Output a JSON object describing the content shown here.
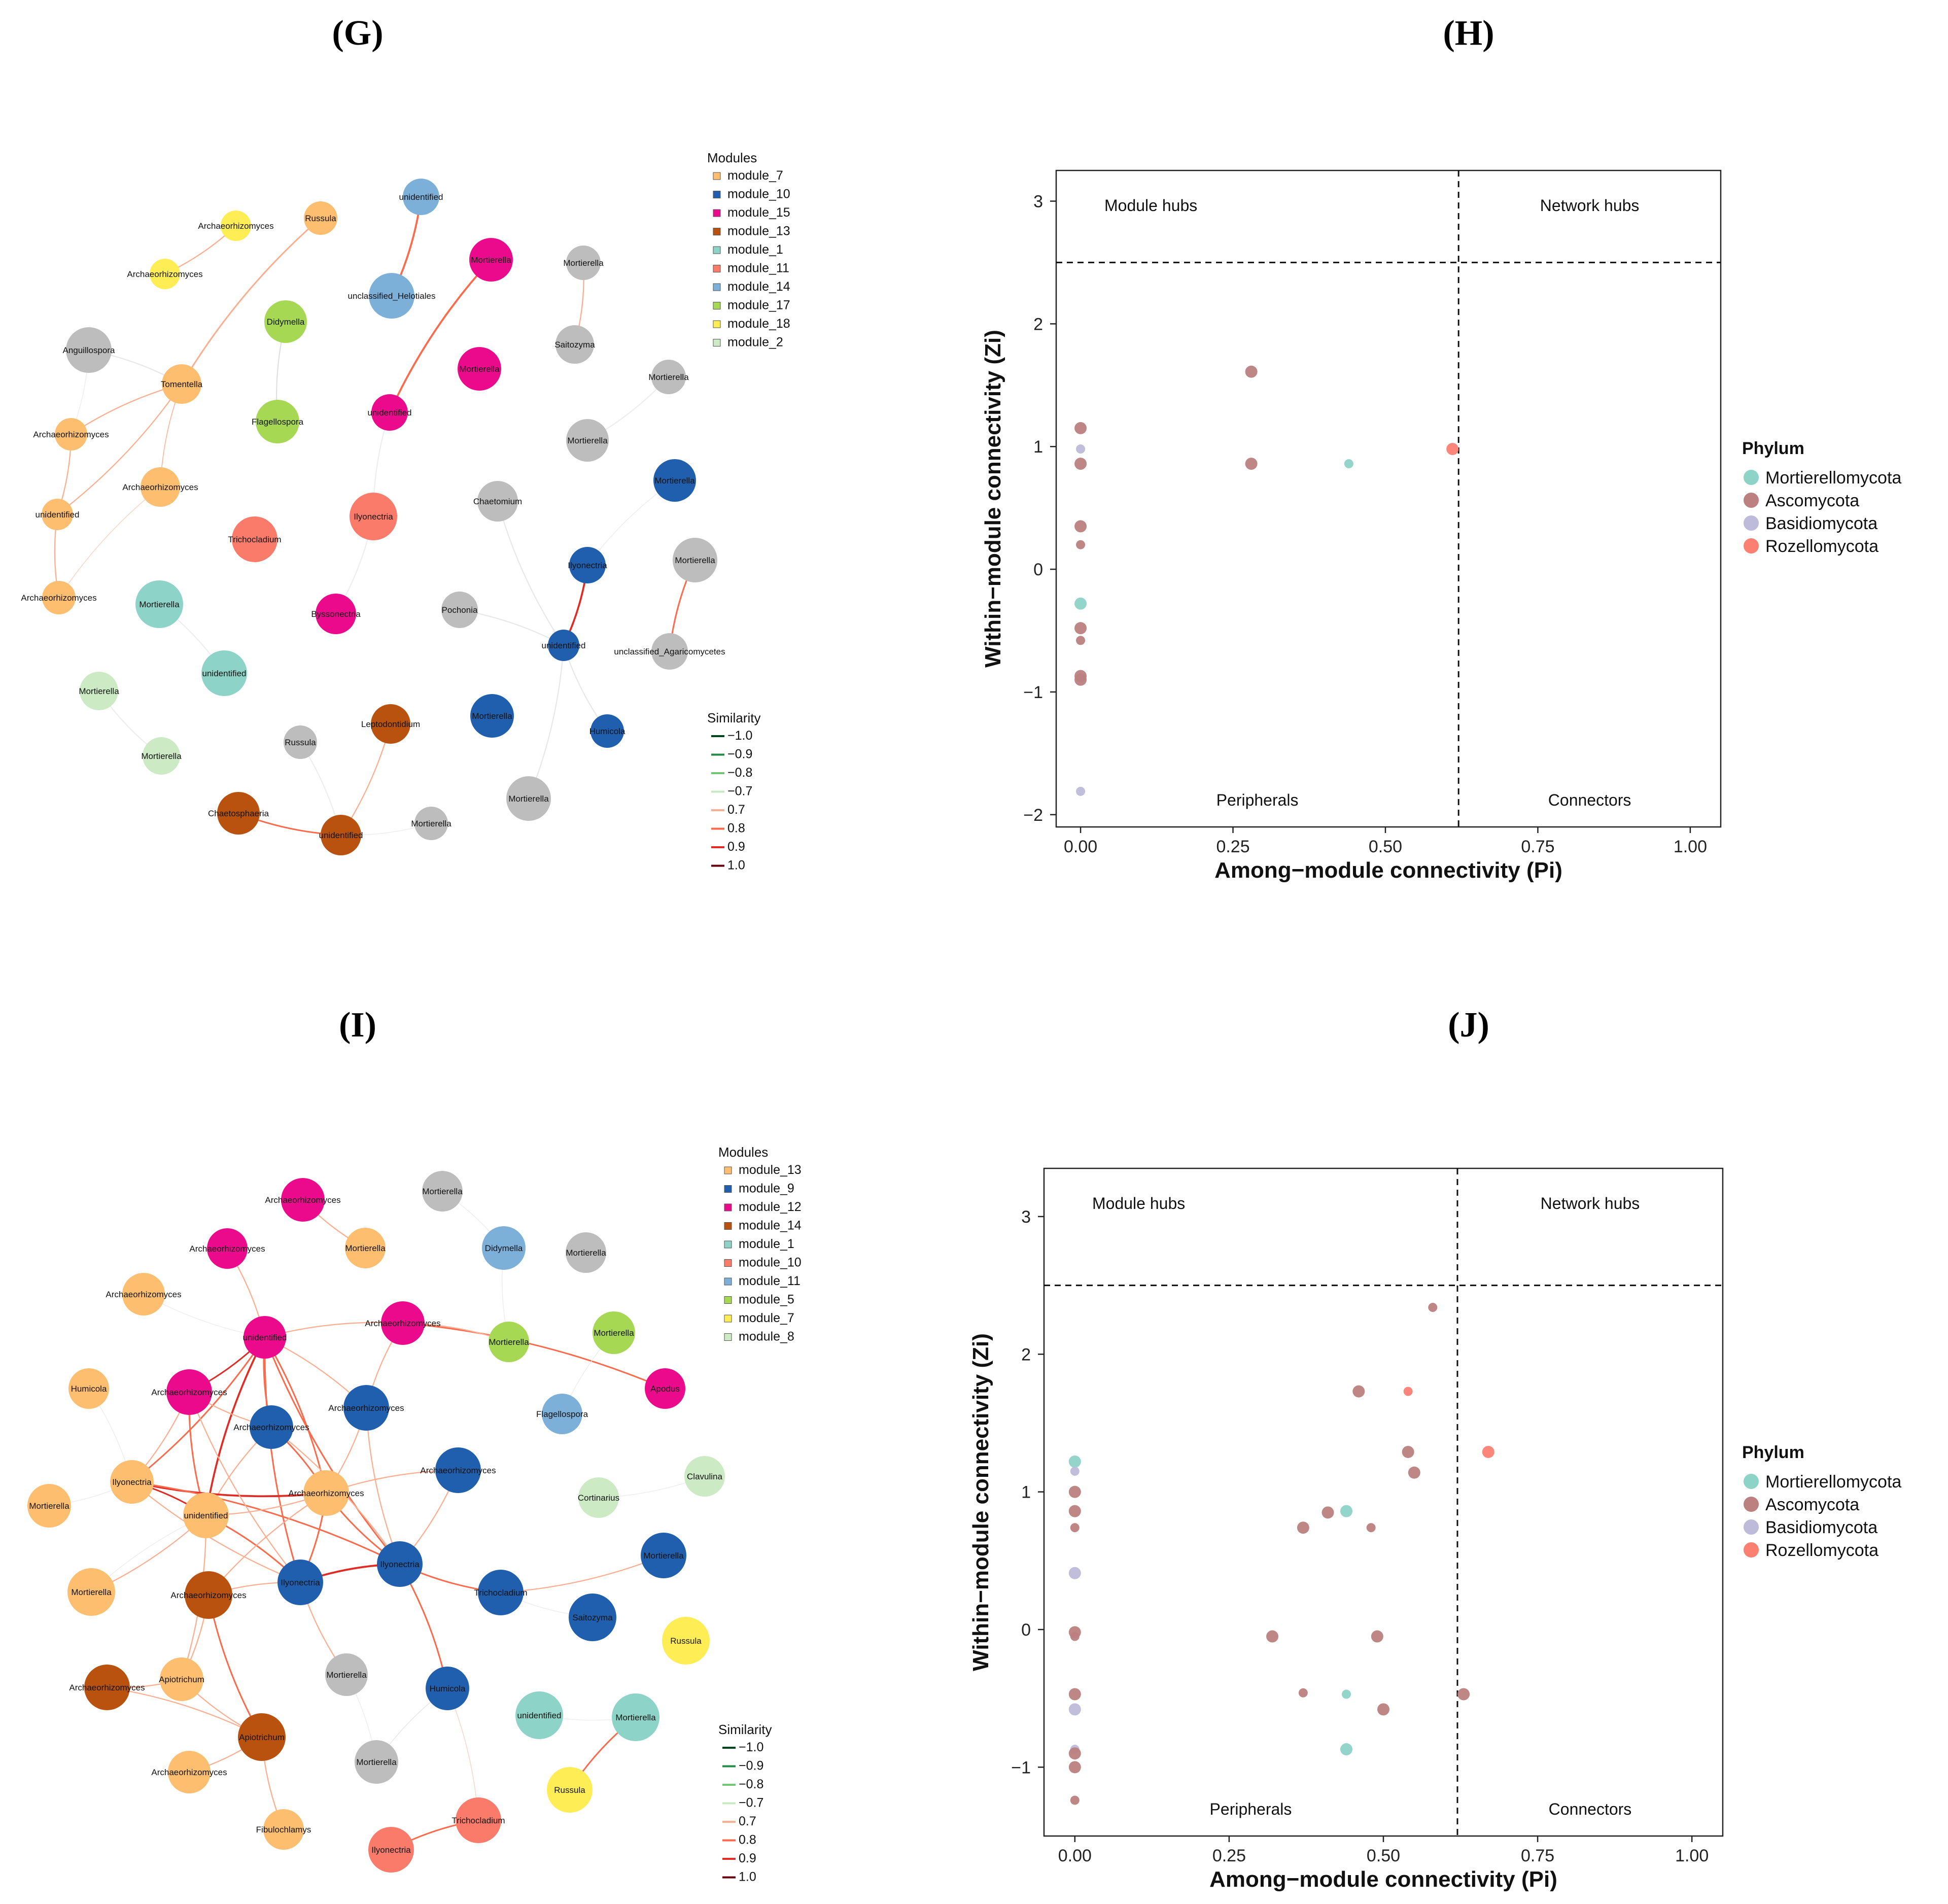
{
  "chart_data": [
    {
      "panel": "(G)",
      "type": "network",
      "modules_title": "Modules",
      "modules": [
        {
          "name": "module_7",
          "color": "#FDBF6F"
        },
        {
          "name": "module_10",
          "color": "#1F5FAD"
        },
        {
          "name": "module_15",
          "color": "#EC0A8C"
        },
        {
          "name": "module_13",
          "color": "#B8520E"
        },
        {
          "name": "module_1",
          "color": "#8DD3C7"
        },
        {
          "name": "module_11",
          "color": "#FB7B6B"
        },
        {
          "name": "module_14",
          "color": "#7DB0D9"
        },
        {
          "name": "module_17",
          "color": "#A6D854"
        },
        {
          "name": "module_18",
          "color": "#FFED55"
        },
        {
          "name": "module_2",
          "color": "#CCEBC5"
        }
      ],
      "similarity_title": "Similarity",
      "similarity": [
        {
          "label": "−1.0",
          "color": "#00441B"
        },
        {
          "label": "−0.9",
          "color": "#238B45"
        },
        {
          "label": "−0.8",
          "color": "#74C476"
        },
        {
          "label": "−0.7",
          "color": "#C7E9C0"
        },
        {
          "label": "0.7",
          "color": "#FCAE91"
        },
        {
          "label": "0.8",
          "color": "#FB6A4A"
        },
        {
          "label": "0.9",
          "color": "#DE2D26"
        },
        {
          "label": "1.0",
          "color": "#67000D"
        }
      ],
      "nodes": [
        {
          "id": "g1",
          "label": "Archaeorhizomyces",
          "group": "module_18"
        },
        {
          "id": "g2",
          "label": "Archaeorhizomyces",
          "group": "module_18"
        },
        {
          "id": "g3",
          "label": "Russula",
          "group": "module_7"
        },
        {
          "id": "g4",
          "label": "unidentified",
          "group": "module_14"
        },
        {
          "id": "g5",
          "label": "unclassified_Helotiales",
          "group": "module_14"
        },
        {
          "id": "g6",
          "label": "Mortierella",
          "group": "module_15"
        },
        {
          "id": "g7",
          "label": "Mortierella",
          "group": "none"
        },
        {
          "id": "g8",
          "label": "Anguillospora",
          "group": "none"
        },
        {
          "id": "g9",
          "label": "Didymella",
          "group": "module_17"
        },
        {
          "id": "g10",
          "label": "Saitozyma",
          "group": "none"
        },
        {
          "id": "g11",
          "label": "Mortierella",
          "group": "module_15"
        },
        {
          "id": "g12",
          "label": "Mortierella",
          "group": "none"
        },
        {
          "id": "g13",
          "label": "Tomentella",
          "group": "module_7"
        },
        {
          "id": "g14",
          "label": "Archaeorhizomyces",
          "group": "module_7"
        },
        {
          "id": "g15",
          "label": "Flagellospora",
          "group": "module_17"
        },
        {
          "id": "g16",
          "label": "unidentified",
          "group": "module_15"
        },
        {
          "id": "g17",
          "label": "Mortierella",
          "group": "none"
        },
        {
          "id": "g18",
          "label": "Archaeorhizomyces",
          "group": "module_7"
        },
        {
          "id": "g19",
          "label": "Mortierella",
          "group": "module_10"
        },
        {
          "id": "g20",
          "label": "unidentified",
          "group": "module_7"
        },
        {
          "id": "g21",
          "label": "Ilyonectria",
          "group": "module_11"
        },
        {
          "id": "g22",
          "label": "Trichocladium",
          "group": "module_11"
        },
        {
          "id": "g23",
          "label": "Chaetomium",
          "group": "none"
        },
        {
          "id": "g24",
          "label": "Ilyonectria",
          "group": "module_10"
        },
        {
          "id": "g25",
          "label": "Mortierella",
          "group": "none"
        },
        {
          "id": "g26",
          "label": "Archaeorhizomyces",
          "group": "module_7"
        },
        {
          "id": "g27",
          "label": "Mortierella",
          "group": "module_1"
        },
        {
          "id": "g28",
          "label": "Byssonectria",
          "group": "module_15"
        },
        {
          "id": "g29",
          "label": "Pochonia",
          "group": "none"
        },
        {
          "id": "g30",
          "label": "unidentified",
          "group": "module_10"
        },
        {
          "id": "g31",
          "label": "unclassified_Agaricomycetes",
          "group": "none"
        },
        {
          "id": "g32",
          "label": "unidentified",
          "group": "module_1"
        },
        {
          "id": "g33",
          "label": "Mortierella",
          "group": "module_2"
        },
        {
          "id": "g34",
          "label": "Leptodontidium",
          "group": "module_13"
        },
        {
          "id": "g35",
          "label": "Mortierella",
          "group": "module_10"
        },
        {
          "id": "g36",
          "label": "Humicola",
          "group": "module_10"
        },
        {
          "id": "g37",
          "label": "Russula",
          "group": "none"
        },
        {
          "id": "g38",
          "label": "Mortierella",
          "group": "module_2"
        },
        {
          "id": "g39",
          "label": "Mortierella",
          "group": "none"
        },
        {
          "id": "g40",
          "label": "Chaetosphaeria",
          "group": "module_13"
        },
        {
          "id": "g41",
          "label": "unidentified",
          "group": "module_13"
        },
        {
          "id": "g42",
          "label": "Mortierella",
          "group": "none"
        }
      ]
    },
    {
      "panel": "(H)",
      "type": "scatter",
      "xlabel": "Among−module connectivity (Pi)",
      "ylabel": "Within−module connectivity (Zi)",
      "xlim": [
        -0.04,
        1.05
      ],
      "ylim": [
        -2.1,
        3.25
      ],
      "xticks": [
        "0.00",
        "0.25",
        "0.50",
        "0.75",
        "1.00"
      ],
      "yticks": [
        "−2",
        "−1",
        "0",
        "1",
        "2",
        "3"
      ],
      "thresholds": {
        "x": 0.62,
        "y": 2.5
      },
      "quadrants": {
        "module_hubs": "Module hubs",
        "network_hubs": "Network hubs",
        "peripherals": "Peripherals",
        "connectors": "Connectors"
      },
      "legend_title": "Phylum",
      "legend": [
        {
          "name": "Mortierellomycota",
          "color": "#8DD3C7"
        },
        {
          "name": "Ascomycota",
          "color": "#BC8080"
        },
        {
          "name": "Basidiomycota",
          "color": "#BEBADA"
        },
        {
          "name": "Rozellomycota",
          "color": "#FB8072"
        }
      ],
      "points": [
        {
          "x": 0.0,
          "y": 1.15,
          "phylum": "Ascomycota"
        },
        {
          "x": 0.0,
          "y": 0.98,
          "phylum": "Basidiomycota"
        },
        {
          "x": 0.0,
          "y": 0.86,
          "phylum": "Ascomycota"
        },
        {
          "x": 0.0,
          "y": 0.35,
          "phylum": "Ascomycota"
        },
        {
          "x": 0.0,
          "y": 0.2,
          "phylum": "Ascomycota"
        },
        {
          "x": 0.0,
          "y": -0.28,
          "phylum": "Mortierellomycota"
        },
        {
          "x": 0.0,
          "y": -0.48,
          "phylum": "Ascomycota"
        },
        {
          "x": 0.0,
          "y": -0.58,
          "phylum": "Ascomycota"
        },
        {
          "x": 0.0,
          "y": -0.87,
          "phylum": "Ascomycota"
        },
        {
          "x": 0.0,
          "y": -0.9,
          "phylum": "Ascomycota"
        },
        {
          "x": 0.0,
          "y": -1.81,
          "phylum": "Basidiomycota"
        },
        {
          "x": 0.28,
          "y": 1.61,
          "phylum": "Ascomycota"
        },
        {
          "x": 0.28,
          "y": 0.86,
          "phylum": "Ascomycota"
        },
        {
          "x": 0.44,
          "y": 0.86,
          "phylum": "Mortierellomycota"
        },
        {
          "x": 0.61,
          "y": 0.98,
          "phylum": "Rozellomycota"
        }
      ]
    },
    {
      "panel": "(I)",
      "type": "network",
      "modules_title": "Modules",
      "modules": [
        {
          "name": "module_13",
          "color": "#FDBF6F"
        },
        {
          "name": "module_9",
          "color": "#1F5FAD"
        },
        {
          "name": "module_12",
          "color": "#EC0A8C"
        },
        {
          "name": "module_14",
          "color": "#B8520E"
        },
        {
          "name": "module_1",
          "color": "#8DD3C7"
        },
        {
          "name": "module_10",
          "color": "#FB7B6B"
        },
        {
          "name": "module_11",
          "color": "#7DB0D9"
        },
        {
          "name": "module_5",
          "color": "#A6D854"
        },
        {
          "name": "module_7",
          "color": "#FFED55"
        },
        {
          "name": "module_8",
          "color": "#CCEBC5"
        }
      ],
      "similarity_title": "Similarity",
      "similarity": [
        {
          "label": "−1.0",
          "color": "#00441B"
        },
        {
          "label": "−0.9",
          "color": "#238B45"
        },
        {
          "label": "−0.8",
          "color": "#74C476"
        },
        {
          "label": "−0.7",
          "color": "#C7E9C0"
        },
        {
          "label": "0.7",
          "color": "#FCAE91"
        },
        {
          "label": "0.8",
          "color": "#FB6A4A"
        },
        {
          "label": "0.9",
          "color": "#DE2D26"
        },
        {
          "label": "1.0",
          "color": "#67000D"
        }
      ],
      "nodes": [
        {
          "id": "i1",
          "label": "Archaeorhizomyces",
          "group": "module_12"
        },
        {
          "id": "i2",
          "label": "Mortierella",
          "group": "none"
        },
        {
          "id": "i3",
          "label": "Archaeorhizomyces",
          "group": "module_12"
        },
        {
          "id": "i4",
          "label": "Mortierella",
          "group": "module_13"
        },
        {
          "id": "i5",
          "label": "Didymella",
          "group": "module_11"
        },
        {
          "id": "i6",
          "label": "Mortierella",
          "group": "none"
        },
        {
          "id": "i7",
          "label": "Archaeorhizomyces",
          "group": "module_13"
        },
        {
          "id": "i8",
          "label": "unidentified",
          "group": "module_12"
        },
        {
          "id": "i9",
          "label": "Archaeorhizomyces",
          "group": "module_12"
        },
        {
          "id": "i10",
          "label": "Mortierella",
          "group": "module_5"
        },
        {
          "id": "i11",
          "label": "Mortierella",
          "group": "module_5"
        },
        {
          "id": "i12",
          "label": "Humicola",
          "group": "module_13"
        },
        {
          "id": "i13",
          "label": "Archaeorhizomyces",
          "group": "module_12"
        },
        {
          "id": "i14",
          "label": "Archaeorhizomyces",
          "group": "module_9"
        },
        {
          "id": "i15",
          "label": "Apodus",
          "group": "module_12"
        },
        {
          "id": "i16",
          "label": "Archaeorhizomyces",
          "group": "module_9"
        },
        {
          "id": "i17",
          "label": "Flagellospora",
          "group": "module_11"
        },
        {
          "id": "i18",
          "label": "Ilyonectria",
          "group": "module_13"
        },
        {
          "id": "i19",
          "label": "Archaeorhizomyces",
          "group": "module_9"
        },
        {
          "id": "i20",
          "label": "Clavulina",
          "group": "module_8"
        },
        {
          "id": "i21",
          "label": "Mortierella",
          "group": "module_13"
        },
        {
          "id": "i22",
          "label": "unidentified",
          "group": "module_13"
        },
        {
          "id": "i23",
          "label": "Archaeorhizomyces",
          "group": "module_13"
        },
        {
          "id": "i24",
          "label": "Cortinarius",
          "group": "module_8"
        },
        {
          "id": "i25",
          "label": "Ilyonectria",
          "group": "module_9"
        },
        {
          "id": "i26",
          "label": "Ilyonectria",
          "group": "module_9"
        },
        {
          "id": "i27",
          "label": "Mortierella",
          "group": "module_9"
        },
        {
          "id": "i28",
          "label": "Mortierella",
          "group": "module_13"
        },
        {
          "id": "i29",
          "label": "Archaeorhizomyces",
          "group": "module_14"
        },
        {
          "id": "i30",
          "label": "Trichocladium",
          "group": "module_9"
        },
        {
          "id": "i31",
          "label": "Saitozyma",
          "group": "module_9"
        },
        {
          "id": "i32",
          "label": "Russula",
          "group": "module_7"
        },
        {
          "id": "i33",
          "label": "Archaeorhizomyces",
          "group": "module_14"
        },
        {
          "id": "i34",
          "label": "Apiotrichum",
          "group": "module_13"
        },
        {
          "id": "i35",
          "label": "Mortierella",
          "group": "none"
        },
        {
          "id": "i36",
          "label": "Humicola",
          "group": "module_9"
        },
        {
          "id": "i37",
          "label": "unidentified",
          "group": "module_1"
        },
        {
          "id": "i38",
          "label": "Mortierella",
          "group": "module_1"
        },
        {
          "id": "i39",
          "label": "Apiotrichum",
          "group": "module_14"
        },
        {
          "id": "i40",
          "label": "Archaeorhizomyces",
          "group": "module_13"
        },
        {
          "id": "i41",
          "label": "Mortierella",
          "group": "none"
        },
        {
          "id": "i42",
          "label": "Russula",
          "group": "module_7"
        },
        {
          "id": "i43",
          "label": "Fibulochlamys",
          "group": "module_13"
        },
        {
          "id": "i44",
          "label": "Trichocladium",
          "group": "module_10"
        },
        {
          "id": "i45",
          "label": "Ilyonectria",
          "group": "module_10"
        }
      ]
    },
    {
      "panel": "(J)",
      "type": "scatter",
      "xlabel": "Among−module connectivity (Pi)",
      "ylabel": "Within−module connectivity (Zi)",
      "xlim": [
        -0.05,
        1.05
      ],
      "ylim": [
        -1.5,
        3.35
      ],
      "xticks": [
        "0.00",
        "0.25",
        "0.50",
        "0.75",
        "1.00"
      ],
      "yticks": [
        "−1",
        "0",
        "1",
        "2",
        "3"
      ],
      "thresholds": {
        "x": 0.62,
        "y": 2.5
      },
      "quadrants": {
        "module_hubs": "Module hubs",
        "network_hubs": "Network hubs",
        "peripherals": "Peripherals",
        "connectors": "Connectors"
      },
      "legend_title": "Phylum",
      "legend": [
        {
          "name": "Mortierellomycota",
          "color": "#8DD3C7"
        },
        {
          "name": "Ascomycota",
          "color": "#BC8080"
        },
        {
          "name": "Basidiomycota",
          "color": "#BEBADA"
        },
        {
          "name": "Rozellomycota",
          "color": "#FB8072"
        }
      ],
      "points": [
        {
          "x": 0.0,
          "y": 1.22,
          "phylum": "Mortierellomycota"
        },
        {
          "x": 0.0,
          "y": 1.15,
          "phylum": "Basidiomycota"
        },
        {
          "x": 0.0,
          "y": 1.0,
          "phylum": "Ascomycota"
        },
        {
          "x": 0.0,
          "y": 0.86,
          "phylum": "Ascomycota"
        },
        {
          "x": 0.0,
          "y": 0.74,
          "phylum": "Ascomycota"
        },
        {
          "x": 0.0,
          "y": 0.41,
          "phylum": "Basidiomycota"
        },
        {
          "x": 0.0,
          "y": -0.02,
          "phylum": "Ascomycota"
        },
        {
          "x": 0.0,
          "y": -0.05,
          "phylum": "Ascomycota"
        },
        {
          "x": 0.0,
          "y": -0.47,
          "phylum": "Ascomycota"
        },
        {
          "x": 0.0,
          "y": -0.58,
          "phylum": "Basidiomycota"
        },
        {
          "x": 0.0,
          "y": -0.87,
          "phylum": "Basidiomycota"
        },
        {
          "x": 0.0,
          "y": -0.9,
          "phylum": "Ascomycota"
        },
        {
          "x": 0.0,
          "y": -1.0,
          "phylum": "Ascomycota"
        },
        {
          "x": 0.0,
          "y": -1.24,
          "phylum": "Ascomycota"
        },
        {
          "x": 0.32,
          "y": -0.05,
          "phylum": "Ascomycota"
        },
        {
          "x": 0.37,
          "y": 0.74,
          "phylum": "Ascomycota"
        },
        {
          "x": 0.37,
          "y": -0.46,
          "phylum": "Ascomycota"
        },
        {
          "x": 0.41,
          "y": 0.85,
          "phylum": "Ascomycota"
        },
        {
          "x": 0.44,
          "y": 0.86,
          "phylum": "Mortierellomycota"
        },
        {
          "x": 0.44,
          "y": -0.47,
          "phylum": "Mortierellomycota"
        },
        {
          "x": 0.44,
          "y": -0.87,
          "phylum": "Mortierellomycota"
        },
        {
          "x": 0.46,
          "y": 1.73,
          "phylum": "Ascomycota"
        },
        {
          "x": 0.48,
          "y": 0.74,
          "phylum": "Ascomycota"
        },
        {
          "x": 0.49,
          "y": -0.05,
          "phylum": "Ascomycota"
        },
        {
          "x": 0.5,
          "y": -0.58,
          "phylum": "Ascomycota"
        },
        {
          "x": 0.54,
          "y": 1.73,
          "phylum": "Rozellomycota"
        },
        {
          "x": 0.54,
          "y": 1.29,
          "phylum": "Ascomycota"
        },
        {
          "x": 0.55,
          "y": 1.14,
          "phylum": "Ascomycota"
        },
        {
          "x": 0.58,
          "y": 2.34,
          "phylum": "Ascomycota"
        },
        {
          "x": 0.63,
          "y": -0.47,
          "phylum": "Ascomycota"
        },
        {
          "x": 0.67,
          "y": 1.29,
          "phylum": "Rozellomycota"
        }
      ]
    }
  ]
}
